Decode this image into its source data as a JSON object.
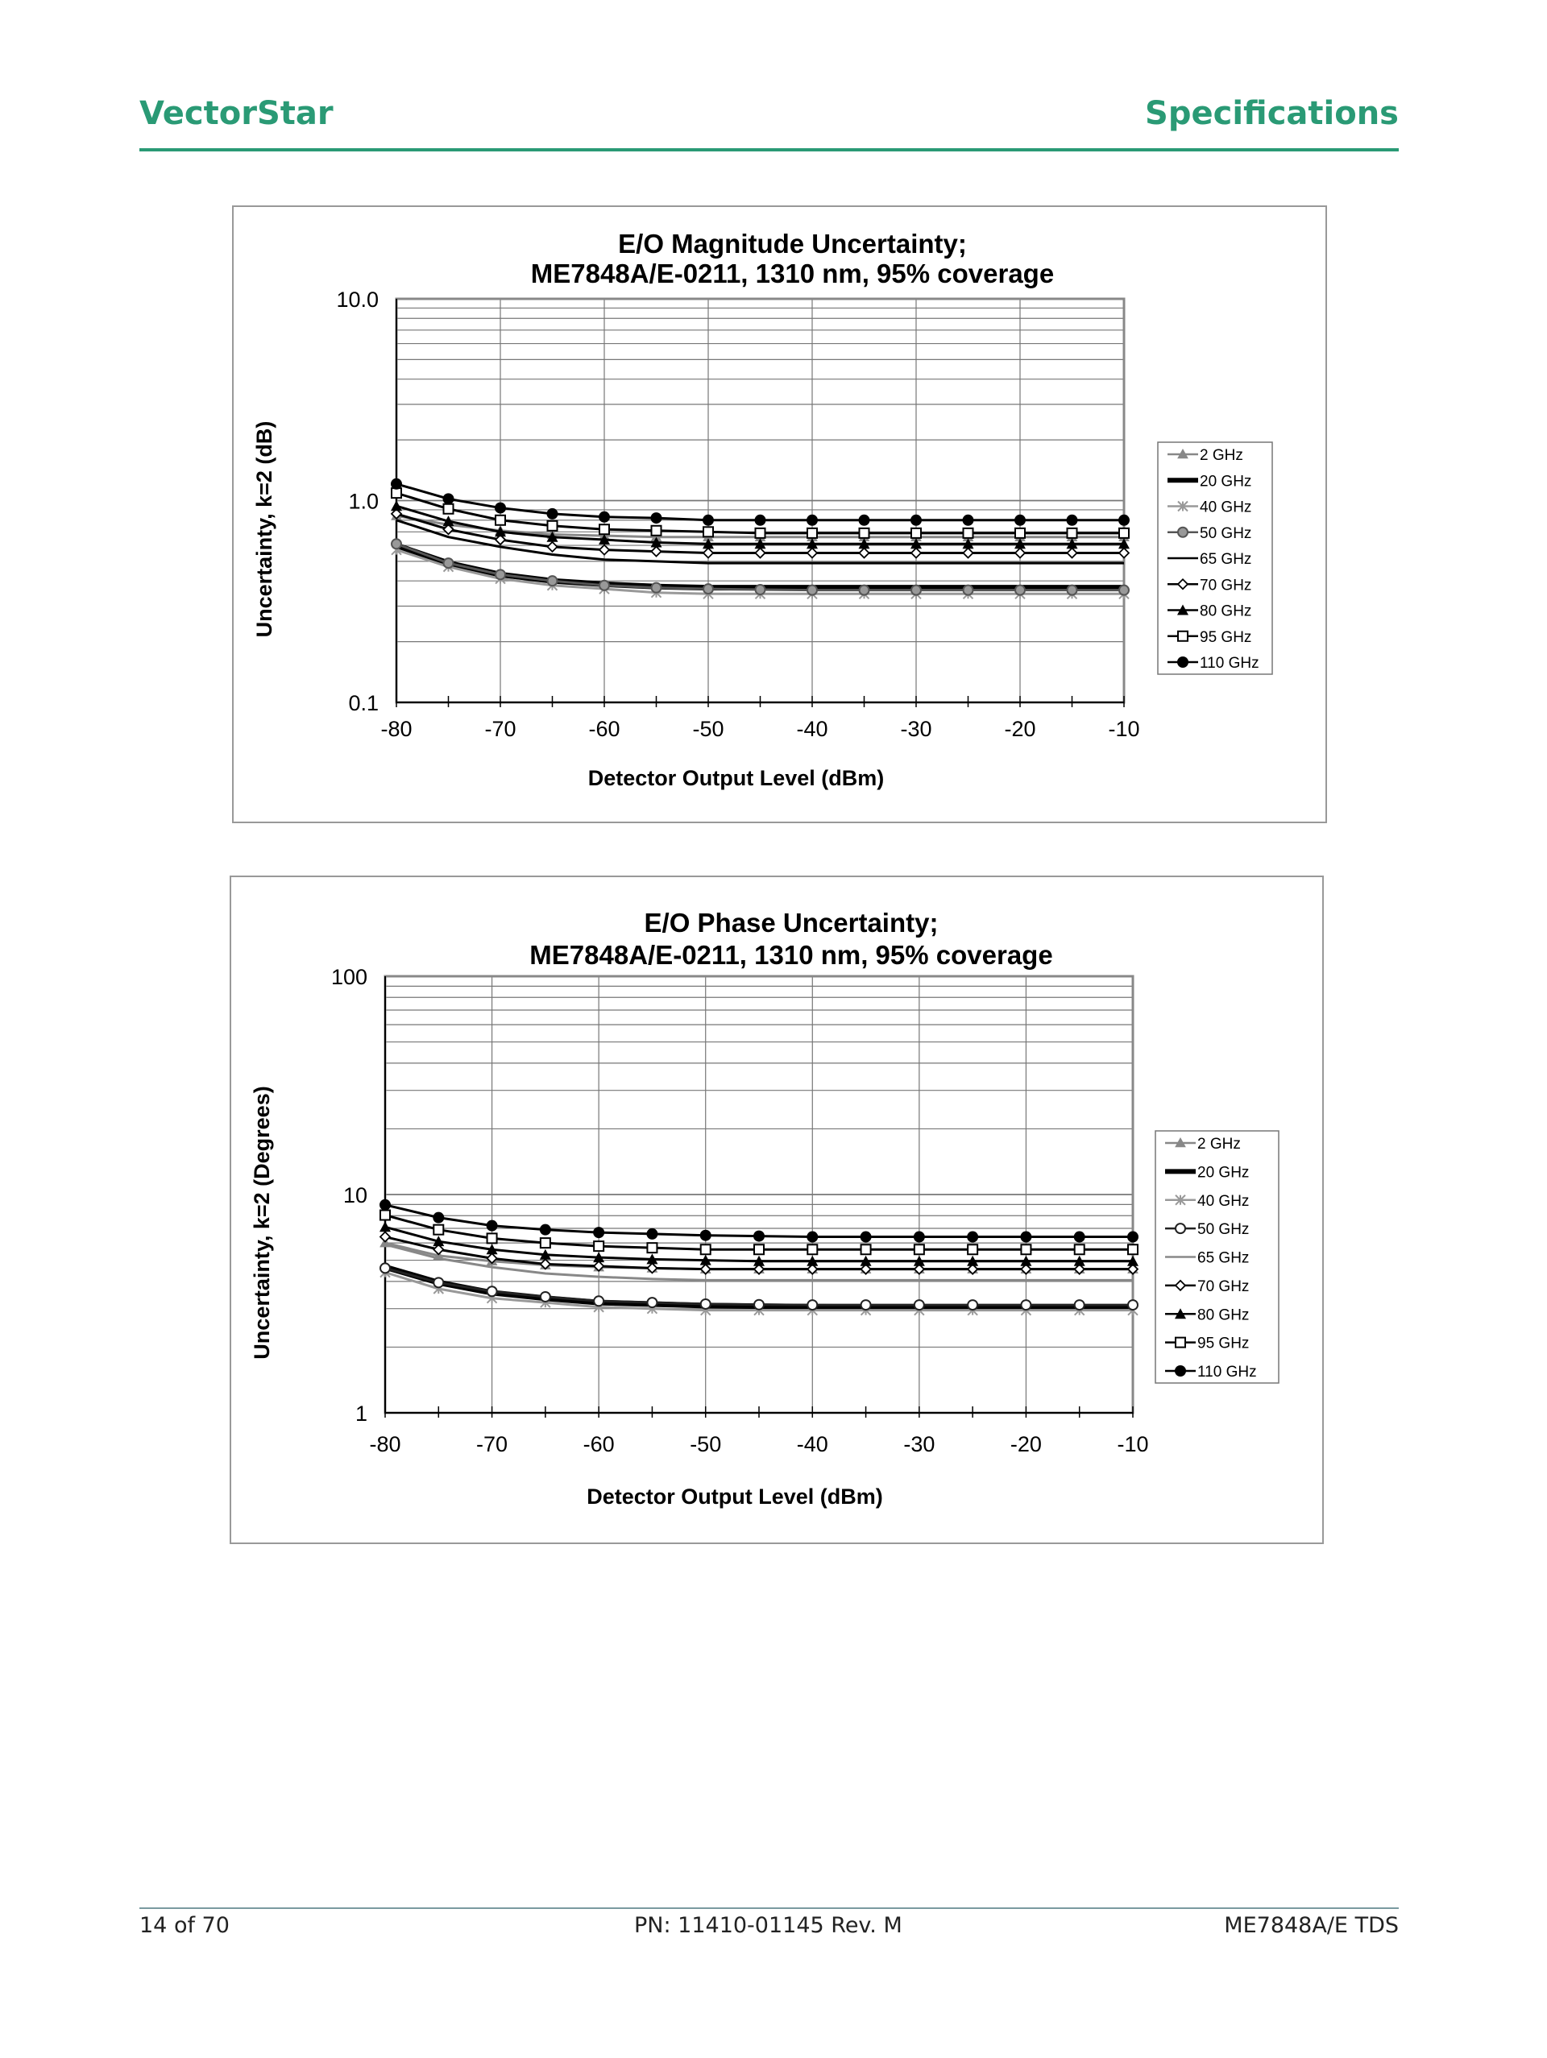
{
  "header": {
    "left": "VectorStar",
    "right": "Specifications"
  },
  "footer": {
    "page": "14 of 70",
    "part_number": "PN: 11410-01145  Rev. M",
    "doc": "ME7848A/E TDS"
  },
  "colors": {
    "brand": "#2a9a75"
  },
  "chart_data": [
    {
      "type": "line",
      "title": "E/O Magnitude Uncertainty;",
      "subtitle": "ME7848A/E-0211, 1310 nm, 95% coverage",
      "xlabel": "Detector Output Level (dBm)",
      "ylabel": "Uncertainty, k=2 (dB)",
      "yscale": "log",
      "ylim": [
        0.1,
        10
      ],
      "xlim": [
        -80,
        -10
      ],
      "yticks": [
        "0.1",
        "1.0",
        "10.0"
      ],
      "xticks": [
        "-80",
        "-70",
        "-60",
        "-50",
        "-40",
        "-30",
        "-20",
        "-10"
      ],
      "legend": "right",
      "grid": true,
      "x": [
        -80,
        -75,
        -70,
        -65,
        -60,
        -55,
        -50,
        -45,
        -40,
        -35,
        -30,
        -25,
        -20,
        -15,
        -10
      ],
      "series": [
        {
          "name": "2 GHz",
          "color": "#888888",
          "marker": "triangle",
          "values": [
            0.84,
            0.76,
            0.71,
            0.68,
            0.67,
            0.66,
            0.66,
            0.66,
            0.66,
            0.66,
            0.66,
            0.66,
            0.66,
            0.66,
            0.66
          ]
        },
        {
          "name": "20 GHz",
          "color": "#000000",
          "marker": "none",
          "thick": true,
          "values": [
            0.6,
            0.49,
            0.43,
            0.4,
            0.385,
            0.375,
            0.37,
            0.37,
            0.37,
            0.37,
            0.37,
            0.37,
            0.37,
            0.37,
            0.37
          ]
        },
        {
          "name": "40 GHz",
          "color": "#999999",
          "marker": "star",
          "values": [
            0.57,
            0.47,
            0.41,
            0.38,
            0.365,
            0.35,
            0.345,
            0.345,
            0.345,
            0.345,
            0.345,
            0.345,
            0.345,
            0.345,
            0.345
          ]
        },
        {
          "name": "50 GHz",
          "color": "#555555",
          "marker": "circle",
          "values": [
            0.61,
            0.49,
            0.43,
            0.4,
            0.38,
            0.37,
            0.365,
            0.362,
            0.36,
            0.36,
            0.36,
            0.36,
            0.36,
            0.36,
            0.36
          ]
        },
        {
          "name": "65 GHz",
          "color": "#000000",
          "marker": "none",
          "values": [
            0.8,
            0.66,
            0.59,
            0.54,
            0.51,
            0.5,
            0.49,
            0.49,
            0.49,
            0.49,
            0.49,
            0.49,
            0.49,
            0.49,
            0.49
          ]
        },
        {
          "name": "70 GHz",
          "color": "#000000",
          "marker": "diamond",
          "values": [
            0.86,
            0.72,
            0.64,
            0.59,
            0.57,
            0.56,
            0.55,
            0.55,
            0.55,
            0.55,
            0.55,
            0.55,
            0.55,
            0.55,
            0.55
          ]
        },
        {
          "name": "80 GHz",
          "color": "#000000",
          "marker": "triangle-filled",
          "values": [
            0.94,
            0.79,
            0.7,
            0.66,
            0.64,
            0.62,
            0.61,
            0.61,
            0.61,
            0.61,
            0.61,
            0.61,
            0.61,
            0.61,
            0.61
          ]
        },
        {
          "name": "95 GHz",
          "color": "#000000",
          "marker": "square",
          "values": [
            1.09,
            0.91,
            0.8,
            0.75,
            0.72,
            0.71,
            0.7,
            0.69,
            0.69,
            0.69,
            0.69,
            0.69,
            0.69,
            0.69,
            0.69
          ]
        },
        {
          "name": "110 GHz",
          "color": "#000000",
          "marker": "circle-filled",
          "values": [
            1.21,
            1.02,
            0.92,
            0.86,
            0.83,
            0.82,
            0.8,
            0.8,
            0.8,
            0.8,
            0.8,
            0.8,
            0.8,
            0.8,
            0.8
          ]
        }
      ]
    },
    {
      "type": "line",
      "title": "E/O Phase Uncertainty;",
      "subtitle": "ME7848A/E-0211, 1310 nm, 95% coverage",
      "xlabel": "Detector Output Level (dBm)",
      "ylabel": "Uncertainty, k=2 (Degrees)",
      "yscale": "log",
      "ylim": [
        1,
        100
      ],
      "xlim": [
        -80,
        -10
      ],
      "yticks": [
        "1",
        "10",
        "100"
      ],
      "xticks": [
        "-80",
        "-70",
        "-60",
        "-50",
        "-40",
        "-30",
        "-20",
        "-10"
      ],
      "legend": "right",
      "grid": true,
      "x": [
        -80,
        -75,
        -70,
        -65,
        -60,
        -55,
        -50,
        -45,
        -40,
        -35,
        -30,
        -25,
        -20,
        -15,
        -10
      ],
      "series": [
        {
          "name": "2 GHz",
          "color": "#888888",
          "marker": "triangle",
          "values": [
            6.0,
            5.25,
            4.95,
            4.75,
            4.65,
            4.6,
            4.55,
            4.55,
            4.55,
            4.55,
            4.55,
            4.55,
            4.55,
            4.55,
            4.55
          ]
        },
        {
          "name": "20 GHz",
          "color": "#000000",
          "marker": "none",
          "thick": true,
          "values": [
            4.65,
            3.95,
            3.55,
            3.35,
            3.2,
            3.15,
            3.1,
            3.08,
            3.06,
            3.05,
            3.05,
            3.05,
            3.05,
            3.05,
            3.05
          ]
        },
        {
          "name": "40 GHz",
          "color": "#999999",
          "marker": "star",
          "values": [
            4.4,
            3.7,
            3.35,
            3.2,
            3.05,
            3.0,
            2.95,
            2.95,
            2.95,
            2.95,
            2.95,
            2.95,
            2.95,
            2.95,
            2.95
          ]
        },
        {
          "name": "50 GHz",
          "color": "#222222",
          "marker": "circle",
          "values": [
            4.6,
            3.95,
            3.6,
            3.4,
            3.25,
            3.2,
            3.15,
            3.13,
            3.12,
            3.12,
            3.12,
            3.12,
            3.12,
            3.12,
            3.12
          ]
        },
        {
          "name": "65 GHz",
          "color": "#888888",
          "marker": "none",
          "values": [
            5.9,
            5.1,
            4.65,
            4.35,
            4.2,
            4.1,
            4.05,
            4.05,
            4.05,
            4.05,
            4.05,
            4.05,
            4.05,
            4.05,
            4.05
          ]
        },
        {
          "name": "70 GHz",
          "color": "#000000",
          "marker": "diamond",
          "values": [
            6.4,
            5.6,
            5.1,
            4.8,
            4.7,
            4.6,
            4.55,
            4.55,
            4.55,
            4.55,
            4.55,
            4.55,
            4.55,
            4.55,
            4.55
          ]
        },
        {
          "name": "80 GHz",
          "color": "#000000",
          "marker": "triangle-filled",
          "values": [
            7.1,
            6.1,
            5.6,
            5.3,
            5.15,
            5.05,
            5.0,
            4.95,
            4.95,
            4.95,
            4.95,
            4.95,
            4.95,
            4.95,
            4.95
          ]
        },
        {
          "name": "95 GHz",
          "color": "#000000",
          "marker": "square",
          "values": [
            8.05,
            6.9,
            6.3,
            6.0,
            5.8,
            5.7,
            5.6,
            5.6,
            5.6,
            5.6,
            5.6,
            5.6,
            5.6,
            5.6,
            5.6
          ]
        },
        {
          "name": "110 GHz",
          "color": "#000000",
          "marker": "circle-filled",
          "values": [
            8.97,
            7.84,
            7.2,
            6.9,
            6.7,
            6.6,
            6.5,
            6.45,
            6.4,
            6.4,
            6.4,
            6.4,
            6.4,
            6.4,
            6.4
          ]
        }
      ]
    }
  ]
}
